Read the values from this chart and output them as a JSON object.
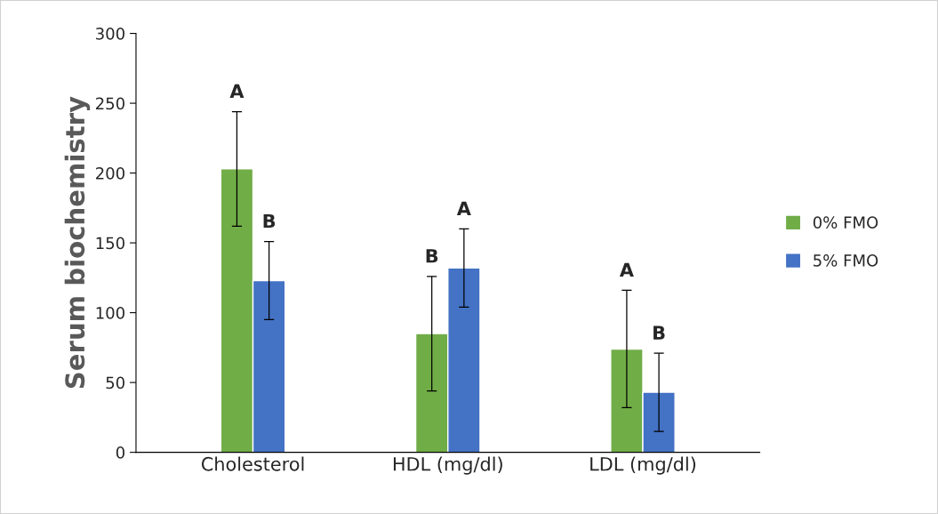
{
  "chart_data": {
    "type": "bar",
    "ylabel": "Serum biochemistry",
    "categories": [
      "Cholesterol",
      "HDL (mg/dl)",
      "LDL (mg/dl)"
    ],
    "series": [
      {
        "name": "0% FMO",
        "color": "#70ad47",
        "values": [
          203,
          85,
          74
        ],
        "errors": [
          41,
          41,
          42
        ]
      },
      {
        "name": "5% FMO",
        "color": "#4472c4",
        "values": [
          123,
          132,
          43
        ],
        "errors": [
          28,
          28,
          28
        ]
      }
    ],
    "annotations": [
      "A",
      "B",
      "B",
      "A",
      "A",
      "B"
    ],
    "ylim": [
      0,
      300
    ],
    "yticks": [
      0,
      50,
      100,
      150,
      200,
      250,
      300
    ],
    "grid": false,
    "legend": "right"
  }
}
